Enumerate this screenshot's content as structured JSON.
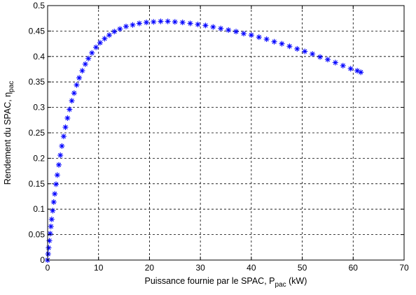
{
  "chart_data": {
    "type": "scatter",
    "title": "",
    "xlabel": {
      "main": "Puissance fournie par le SPAC, P",
      "sub": "pac",
      "suffix": " (kW)"
    },
    "ylabel": {
      "main": "Rendement du SPAC, η",
      "sub": "pac"
    },
    "xlim": [
      0,
      70
    ],
    "ylim": [
      0,
      0.5
    ],
    "x_ticks": [
      "0",
      "10",
      "20",
      "30",
      "40",
      "50",
      "60",
      "70"
    ],
    "y_ticks": [
      "0",
      "0.05",
      "0.1",
      "0.15",
      "0.2",
      "0.25",
      "0.3",
      "0.35",
      "0.4",
      "0.45",
      "0.5"
    ],
    "grid": true,
    "grid_style": "dashed",
    "marker": "*",
    "color": "#0000ff",
    "series": [
      {
        "points": [
          [
            0.0,
            0.0
          ],
          [
            0.1,
            0.012
          ],
          [
            0.2,
            0.024
          ],
          [
            0.35,
            0.038
          ],
          [
            0.5,
            0.052
          ],
          [
            0.65,
            0.066
          ],
          [
            0.8,
            0.08
          ],
          [
            1.0,
            0.097
          ],
          [
            1.2,
            0.114
          ],
          [
            1.4,
            0.13
          ],
          [
            1.65,
            0.149
          ],
          [
            1.9,
            0.167
          ],
          [
            2.2,
            0.187
          ],
          [
            2.5,
            0.206
          ],
          [
            2.8,
            0.224
          ],
          [
            3.15,
            0.243
          ],
          [
            3.5,
            0.261
          ],
          [
            3.9,
            0.279
          ],
          [
            4.3,
            0.296
          ],
          [
            4.75,
            0.313
          ],
          [
            5.2,
            0.328
          ],
          [
            5.7,
            0.344
          ],
          [
            6.2,
            0.358
          ],
          [
            6.8,
            0.372
          ],
          [
            7.4,
            0.385
          ],
          [
            8.0,
            0.396
          ],
          [
            8.7,
            0.407
          ],
          [
            9.5,
            0.418
          ],
          [
            10.3,
            0.427
          ],
          [
            11.2,
            0.435
          ],
          [
            12.1,
            0.442
          ],
          [
            13.1,
            0.449
          ],
          [
            14.2,
            0.454
          ],
          [
            15.4,
            0.459
          ],
          [
            16.7,
            0.462
          ],
          [
            18.0,
            0.465
          ],
          [
            19.4,
            0.467
          ],
          [
            20.8,
            0.468
          ],
          [
            22.2,
            0.469
          ],
          [
            23.6,
            0.469
          ],
          [
            25.0,
            0.468
          ],
          [
            26.5,
            0.467
          ],
          [
            28.0,
            0.465
          ],
          [
            29.5,
            0.463
          ],
          [
            31.0,
            0.461
          ],
          [
            32.5,
            0.458
          ],
          [
            34.0,
            0.455
          ],
          [
            35.5,
            0.452
          ],
          [
            37.0,
            0.449
          ],
          [
            38.5,
            0.445
          ],
          [
            40.0,
            0.442
          ],
          [
            41.5,
            0.438
          ],
          [
            43.0,
            0.434
          ],
          [
            44.5,
            0.429
          ],
          [
            46.0,
            0.425
          ],
          [
            47.5,
            0.42
          ],
          [
            49.0,
            0.415
          ],
          [
            50.5,
            0.41
          ],
          [
            52.0,
            0.405
          ],
          [
            53.5,
            0.399
          ],
          [
            55.0,
            0.394
          ],
          [
            56.5,
            0.388
          ],
          [
            58.0,
            0.382
          ],
          [
            59.5,
            0.376
          ],
          [
            60.8,
            0.372
          ],
          [
            61.5,
            0.369
          ]
        ]
      }
    ]
  }
}
